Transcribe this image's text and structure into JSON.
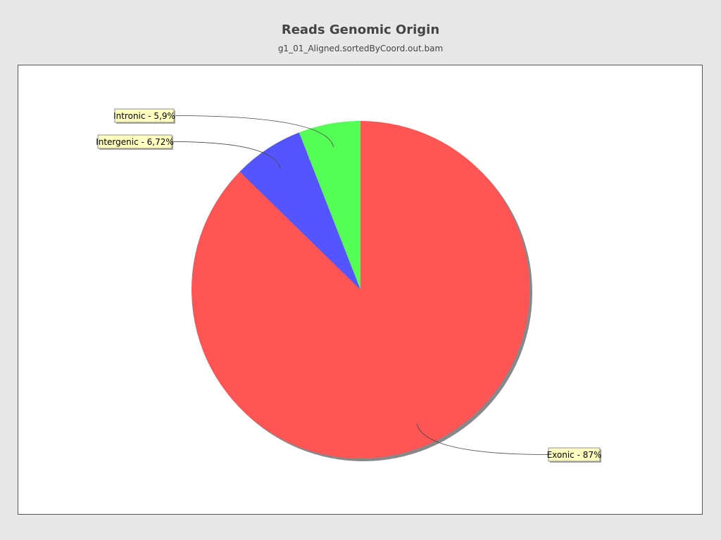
{
  "chart_data": {
    "type": "pie",
    "title": "Reads Genomic Origin",
    "subtitle": "g1_01_Aligned.sortedByCoord.out.bam",
    "start_angle_deg": 90,
    "direction": "clockwise",
    "legend": "none",
    "slices": [
      {
        "name": "Exonic",
        "value": 87,
        "label": "Exonic - 87%",
        "color": "#ff5555"
      },
      {
        "name": "Intergenic",
        "value": 6.72,
        "label": "Intergenic - 6,72%",
        "color": "#5555ff"
      },
      {
        "name": "Intronic",
        "value": 5.9,
        "label": "Intronic - 5,9%",
        "color": "#55ff55"
      }
    ]
  },
  "colors": {
    "background": "#e8e8e8",
    "plot_background": "#ffffff",
    "label_background": "#ffffc0"
  }
}
